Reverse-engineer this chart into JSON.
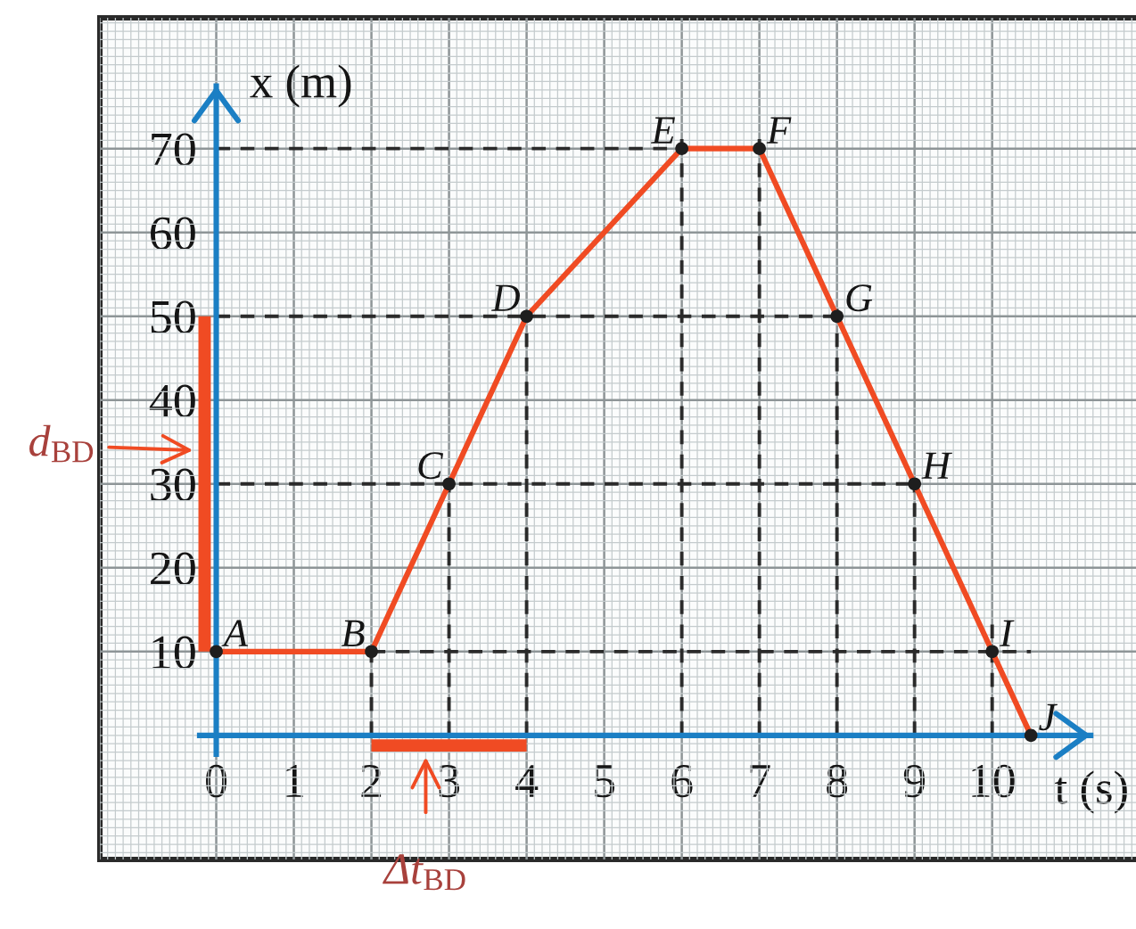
{
  "chart_data": {
    "type": "line",
    "xlabel": "t (s)",
    "ylabel": "x (m)",
    "xlim": [
      -1.5,
      11.9
    ],
    "ylim": [
      -14.8,
      85.6
    ],
    "xticks": [
      0,
      1,
      2,
      3,
      4,
      5,
      6,
      7,
      8,
      9,
      10
    ],
    "yticks": [
      10,
      20,
      30,
      40,
      50,
      60,
      70
    ],
    "grid": true,
    "series": [
      {
        "color": "#2a2a2a",
        "line_style": "dashed",
        "marker": "none",
        "x": [
          0,
          6
        ],
        "values": [
          70,
          70
        ]
      },
      {
        "color": "#2a2a2a",
        "line_style": "dashed",
        "marker": "none",
        "x": [
          0,
          8
        ],
        "values": [
          50,
          50
        ]
      },
      {
        "color": "#2a2a2a",
        "line_style": "dashed",
        "marker": "none",
        "x": [
          0,
          9
        ],
        "values": [
          30,
          30
        ]
      },
      {
        "color": "#2a2a2a",
        "line_style": "dashed",
        "marker": "none",
        "x": [
          2,
          10.5
        ],
        "values": [
          10,
          10
        ]
      },
      {
        "color": "#2a2a2a",
        "line_style": "dashed",
        "marker": "none",
        "x": [
          2,
          2
        ],
        "values": [
          0,
          10
        ]
      },
      {
        "color": "#2a2a2a",
        "line_style": "dashed",
        "marker": "none",
        "x": [
          3,
          3
        ],
        "values": [
          0,
          30
        ]
      },
      {
        "color": "#2a2a2a",
        "line_style": "dashed",
        "marker": "none",
        "x": [
          4,
          4
        ],
        "values": [
          0,
          50
        ]
      },
      {
        "color": "#2a2a2a",
        "line_style": "dashed",
        "marker": "none",
        "x": [
          6,
          6
        ],
        "values": [
          0,
          72
        ]
      },
      {
        "color": "#2a2a2a",
        "line_style": "dashed",
        "marker": "none",
        "x": [
          7,
          7
        ],
        "values": [
          0,
          72
        ]
      },
      {
        "color": "#2a2a2a",
        "line_style": "dashed",
        "marker": "none",
        "x": [
          8,
          8
        ],
        "values": [
          0,
          52
        ]
      },
      {
        "color": "#2a2a2a",
        "line_style": "dashed",
        "marker": "none",
        "x": [
          9,
          9
        ],
        "values": [
          0,
          30
        ]
      },
      {
        "color": "#2a2a2a",
        "line_style": "dashed",
        "marker": "none",
        "x": [
          10,
          10
        ],
        "values": [
          0,
          14
        ]
      },
      {
        "color": "#f04b23",
        "line_style": "solid",
        "marker": "none",
        "x": [
          0,
          2,
          3,
          4,
          6,
          7,
          8,
          9,
          10,
          10.5
        ],
        "values": [
          10,
          10,
          30,
          50,
          70,
          70,
          50,
          30,
          10,
          0
        ]
      },
      {
        "type": "scatter",
        "color": "#1e1e1e",
        "marker": "circle",
        "x": [
          0,
          2,
          3,
          4,
          6,
          7,
          8,
          9,
          10,
          10.5
        ],
        "values": [
          10,
          10,
          30,
          50,
          70,
          70,
          50,
          30,
          10,
          0
        ]
      },
      {
        "name": "d$_{BD}$",
        "color": "#f04b23",
        "line_style": "solid",
        "x": [
          -0.15,
          -0.15
        ],
        "values": [
          10,
          50
        ]
      },
      {
        "name": "Δt$_{BD}$",
        "color": "#f04b23",
        "line_style": "solid",
        "x": [
          2,
          4
        ],
        "values": [
          -1.2,
          -1.2
        ]
      }
    ],
    "annotations": [
      {
        "text": "A",
        "x": 0,
        "y": 10
      },
      {
        "text": "B",
        "x": 2,
        "y": 10
      },
      {
        "text": "C",
        "x": 3,
        "y": 30
      },
      {
        "text": "D",
        "x": 4,
        "y": 50
      },
      {
        "text": "E",
        "x": 6,
        "y": 70
      },
      {
        "text": "F",
        "x": 7,
        "y": 70
      },
      {
        "text": "G",
        "x": 8,
        "y": 50
      },
      {
        "text": "H",
        "x": 9,
        "y": 30
      },
      {
        "text": "I",
        "x": 10,
        "y": 10
      },
      {
        "text": "J",
        "x": 10.5,
        "y": 0
      }
    ]
  }
}
